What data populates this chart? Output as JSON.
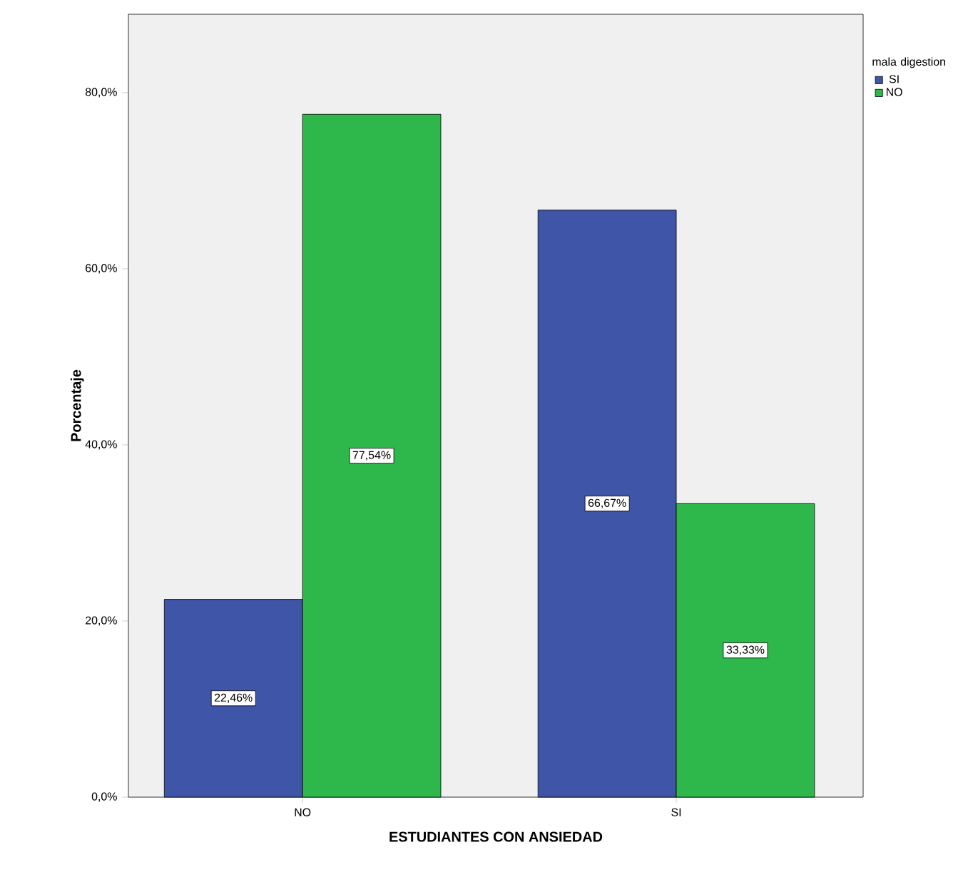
{
  "chart_data": {
    "type": "bar",
    "xlabel": "ESTUDIANTES CON ANSIEDAD",
    "ylabel": "Porcentaje",
    "legend_title": "mala digestion",
    "legend": "top right",
    "categories": [
      "NO",
      "SI"
    ],
    "series": [
      {
        "name": "SI",
        "color": "#3e55a8",
        "values": [
          22.46,
          66.67
        ],
        "value_labels": [
          "22,46%",
          "66,67%"
        ]
      },
      {
        "name": "NO",
        "color": "#2eb84b",
        "values": [
          77.54,
          33.33
        ],
        "value_labels": [
          "77,54%",
          "33,33%"
        ]
      }
    ],
    "ylim": [
      0,
      88.9
    ],
    "yticks": [
      {
        "value": 0,
        "label": "0,0%"
      },
      {
        "value": 20,
        "label": "20,0%"
      },
      {
        "value": 40,
        "label": "40,0%"
      },
      {
        "value": 60,
        "label": "60,0%"
      },
      {
        "value": 80,
        "label": "80,0%"
      }
    ]
  }
}
